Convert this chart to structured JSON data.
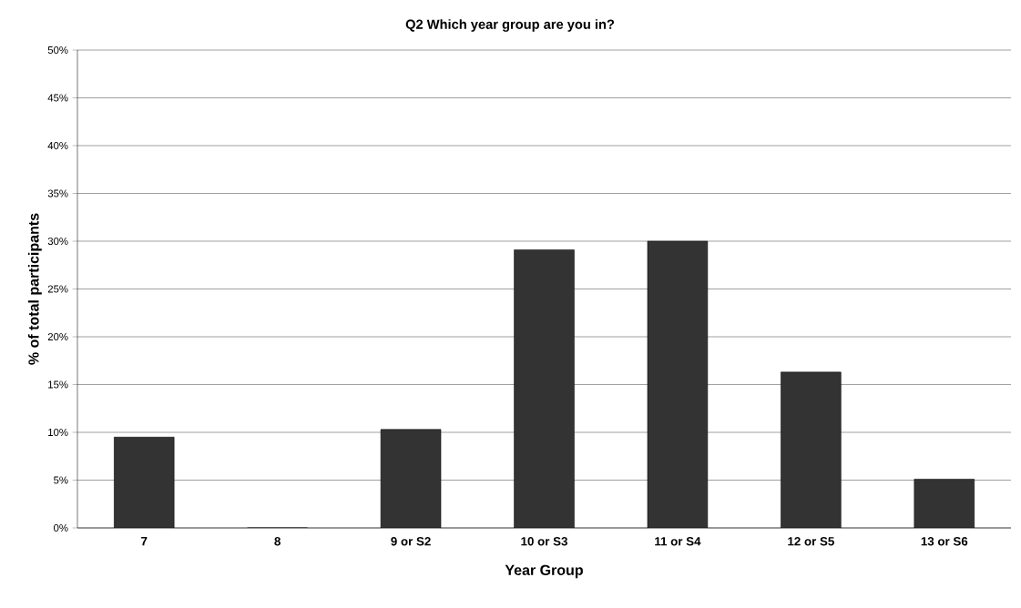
{
  "chart_data": {
    "type": "bar",
    "title": "Q2 Which year group are you in?",
    "xlabel": "Year Group",
    "ylabel": "% of total participants",
    "categories": [
      "7",
      "8",
      "9 or S2",
      "10 or S3",
      "11 or S4",
      "12 or S5",
      "13 or S6"
    ],
    "values": [
      9.5,
      0,
      10.3,
      29.1,
      30.0,
      16.3,
      5.1
    ],
    "color": "#333333",
    "ylim": [
      0,
      50
    ],
    "yticks": [
      {
        "value": 0,
        "label": "0%"
      },
      {
        "value": 5,
        "label": "5%"
      },
      {
        "value": 10,
        "label": "10%"
      },
      {
        "value": 15,
        "label": "15%"
      },
      {
        "value": 20,
        "label": "20%"
      },
      {
        "value": 25,
        "label": "25%"
      },
      {
        "value": 30,
        "label": "30%"
      },
      {
        "value": 35,
        "label": "35%"
      },
      {
        "value": 40,
        "label": "40%"
      },
      {
        "value": 45,
        "label": "45%"
      },
      {
        "value": 50,
        "label": "50%"
      }
    ],
    "grid": "y"
  }
}
